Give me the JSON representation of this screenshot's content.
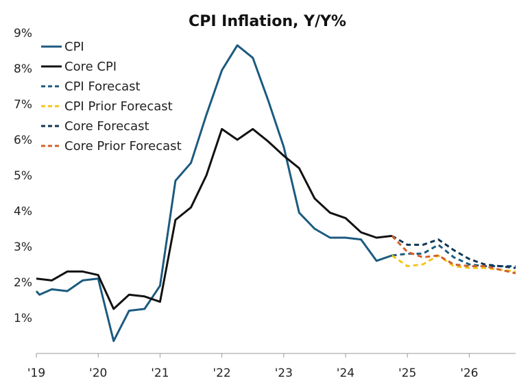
{
  "chart_data": {
    "type": "line",
    "title": "CPI Inflation, Y/Y%",
    "xlabel": "",
    "ylabel": "",
    "xlim": [
      2019.0,
      2026.75
    ],
    "ylim": [
      0,
      9
    ],
    "ytick_values": [
      1,
      2,
      3,
      4,
      5,
      6,
      7,
      8,
      9
    ],
    "ytick_labels": [
      "1%",
      "2%",
      "3%",
      "4%",
      "5%",
      "6%",
      "7%",
      "8%",
      "9%"
    ],
    "xtick_values": [
      2019,
      2020,
      2021,
      2022,
      2023,
      2024,
      2025,
      2026
    ],
    "xtick_labels": [
      "'19",
      "'20",
      "'21",
      "'22",
      "'23",
      "'24",
      "'25",
      "'26"
    ],
    "grid": false,
    "legend_position": "top-left",
    "series": [
      {
        "name": "CPI",
        "color": "#1b5a7f",
        "dash": "solid",
        "x": [
          2019.0,
          2019.05,
          2019.25,
          2019.5,
          2019.75,
          2020.0,
          2020.25,
          2020.5,
          2020.75,
          2021.0,
          2021.25,
          2021.5,
          2021.75,
          2022.0,
          2022.25,
          2022.5,
          2022.75,
          2023.0,
          2023.25,
          2023.5,
          2023.75,
          2024.0,
          2024.25,
          2024.5,
          2024.75
        ],
        "values": [
          1.75,
          1.65,
          1.8,
          1.75,
          2.05,
          2.1,
          0.35,
          1.2,
          1.25,
          1.9,
          4.85,
          5.35,
          6.7,
          7.95,
          8.65,
          8.3,
          7.1,
          5.8,
          3.95,
          3.5,
          3.25,
          3.25,
          3.2,
          2.6,
          2.75
        ]
      },
      {
        "name": "Core CPI",
        "color": "#111111",
        "dash": "solid",
        "x": [
          2019.0,
          2019.25,
          2019.5,
          2019.75,
          2020.0,
          2020.25,
          2020.5,
          2020.75,
          2021.0,
          2021.25,
          2021.5,
          2021.75,
          2022.0,
          2022.25,
          2022.5,
          2022.75,
          2023.0,
          2023.25,
          2023.5,
          2023.75,
          2024.0,
          2024.25,
          2024.5,
          2024.75
        ],
        "values": [
          2.1,
          2.05,
          2.3,
          2.3,
          2.2,
          1.25,
          1.65,
          1.6,
          1.45,
          3.75,
          4.1,
          5.0,
          6.3,
          6.0,
          6.3,
          5.95,
          5.55,
          5.2,
          4.35,
          3.95,
          3.8,
          3.4,
          3.25,
          3.3
        ]
      },
      {
        "name": "CPI Forecast",
        "color": "#1b5a7f",
        "dash": "dashed",
        "x": [
          2024.75,
          2025.0,
          2025.25,
          2025.5,
          2025.75,
          2026.0,
          2026.25,
          2026.5,
          2026.75
        ],
        "values": [
          2.75,
          2.8,
          2.8,
          3.05,
          2.7,
          2.5,
          2.45,
          2.45,
          2.45
        ]
      },
      {
        "name": "CPI Prior Forecast",
        "color": "#f5c518",
        "dash": "dashed",
        "x": [
          2024.75,
          2025.0,
          2025.25,
          2025.5,
          2025.75,
          2026.0,
          2026.25,
          2026.5,
          2026.75
        ],
        "values": [
          2.75,
          2.45,
          2.5,
          2.75,
          2.45,
          2.4,
          2.4,
          2.35,
          2.3
        ]
      },
      {
        "name": "Core Forecast",
        "color": "#0f3352",
        "dash": "dashed",
        "x": [
          2024.75,
          2025.0,
          2025.25,
          2025.5,
          2025.75,
          2026.0,
          2026.25,
          2026.5,
          2026.75
        ],
        "values": [
          3.3,
          3.05,
          3.05,
          3.2,
          2.9,
          2.65,
          2.5,
          2.45,
          2.4
        ]
      },
      {
        "name": "Core Prior Forecast",
        "color": "#d0612a",
        "dash": "dashed",
        "x": [
          2024.75,
          2025.0,
          2025.25,
          2025.5,
          2025.75,
          2026.0,
          2026.25,
          2026.5,
          2026.75
        ],
        "values": [
          3.3,
          2.85,
          2.7,
          2.75,
          2.5,
          2.45,
          2.45,
          2.35,
          2.25
        ]
      }
    ]
  }
}
